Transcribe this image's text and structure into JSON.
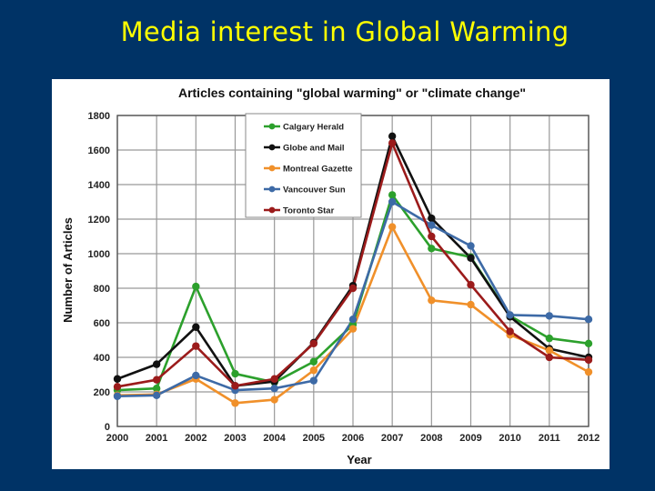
{
  "slide": {
    "title": "Media interest in Global Warming"
  },
  "chart_data": {
    "type": "line",
    "title": "Articles containing \"global warming\" or \"climate change\"",
    "xlabel": "Year",
    "ylabel": "Number of Articles",
    "x": [
      "2000",
      "2001",
      "2002",
      "2003",
      "2004",
      "2005",
      "2006",
      "2007",
      "2008",
      "2009",
      "2010",
      "2011",
      "2012"
    ],
    "ylim": [
      0,
      1800
    ],
    "yticks": [
      0,
      200,
      400,
      600,
      800,
      1000,
      1200,
      1400,
      1600,
      1800
    ],
    "grid": true,
    "legend_position": "top-center",
    "series": [
      {
        "name": "Calgary Herald",
        "color": "#2ca02c",
        "values": [
          210,
          220,
          810,
          305,
          255,
          375,
          590,
          1340,
          1030,
          980,
          640,
          510,
          480
        ]
      },
      {
        "name": "Globe and Mail",
        "color": "#111111",
        "values": [
          275,
          360,
          575,
          235,
          260,
          485,
          815,
          1680,
          1205,
          975,
          635,
          450,
          400
        ]
      },
      {
        "name": "Montreal Gazette",
        "color": "#f0902a",
        "values": [
          180,
          185,
          275,
          135,
          155,
          325,
          565,
          1155,
          730,
          705,
          530,
          440,
          315
        ]
      },
      {
        "name": "Vancouver Sun",
        "color": "#3d6aa6",
        "values": [
          175,
          180,
          295,
          210,
          220,
          265,
          620,
          1300,
          1165,
          1045,
          645,
          640,
          620
        ]
      },
      {
        "name": "Toronto Star",
        "color": "#9b1b1b",
        "values": [
          230,
          270,
          465,
          235,
          275,
          480,
          800,
          1640,
          1100,
          820,
          550,
          400,
          385
        ]
      }
    ]
  }
}
